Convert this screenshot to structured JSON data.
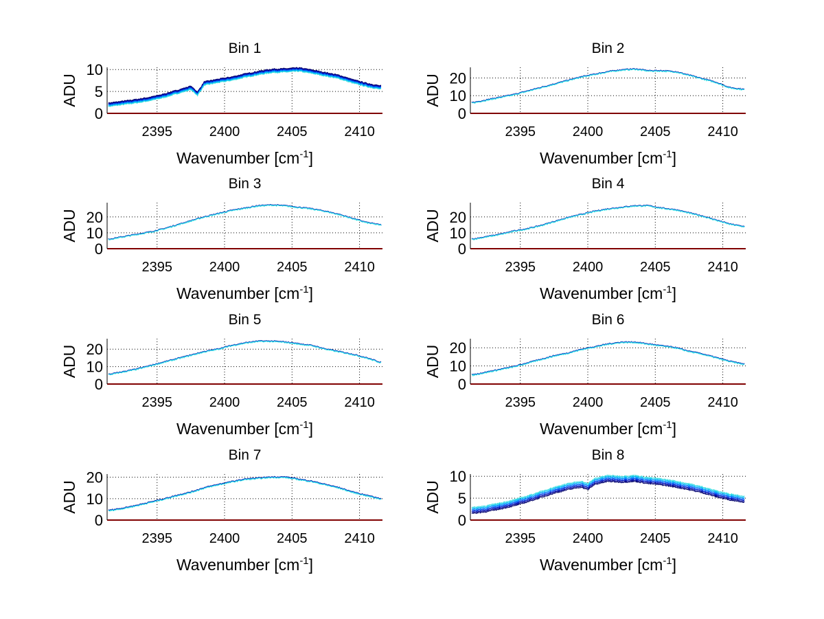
{
  "figure": {
    "background": "#ffffff",
    "grid_color": "#000000",
    "zero_line_color": "#800000",
    "series_colors": [
      "#000066",
      "#00008f",
      "#0018c8",
      "#0050f0",
      "#0090ff",
      "#00c0f0",
      "#40e0e0"
    ]
  },
  "chart_data": [
    {
      "type": "line",
      "title": "Bin 1",
      "xlabel": "Wavenumber [cm",
      "xlabel_sup": "-1",
      "xlabel_end": "]",
      "ylabel": "ADU",
      "xlim": [
        2391.3,
        2411.7
      ],
      "ylim": [
        0,
        10.5
      ],
      "xticks": [
        2395,
        2400,
        2405,
        2410
      ],
      "yticks": [
        0,
        5,
        10
      ],
      "xtick_labels": [
        "2395",
        "2400",
        "2405",
        "2410"
      ],
      "ytick_labels": [
        "0",
        "5",
        "10"
      ],
      "grid": true,
      "series_count": 7,
      "series_spread": 0.8,
      "x": [
        2391.5,
        2392.5,
        2393.5,
        2394.5,
        2395.5,
        2396.5,
        2397.5,
        2398,
        2398.5,
        2399.5,
        2400.5,
        2401.5,
        2402.5,
        2403.5,
        2404.5,
        2405.5,
        2406.5,
        2407.5,
        2408.5,
        2409.5,
        2410.5,
        2411.5
      ],
      "y": [
        2.0,
        2.4,
        2.8,
        3.3,
        4.0,
        4.9,
        5.8,
        4.5,
        6.8,
        7.4,
        7.9,
        8.6,
        9.2,
        9.7,
        9.8,
        10.0,
        9.5,
        8.9,
        8.3,
        7.3,
        6.5,
        5.9
      ]
    },
    {
      "type": "line",
      "title": "Bin 2",
      "xlabel": "Wavenumber [cm",
      "xlabel_sup": "-1",
      "xlabel_end": "]",
      "ylabel": "ADU",
      "xlim": [
        2391.3,
        2411.7
      ],
      "ylim": [
        0,
        26
      ],
      "xticks": [
        2395,
        2400,
        2405,
        2410
      ],
      "yticks": [
        0,
        10,
        20
      ],
      "xtick_labels": [
        "2395",
        "2400",
        "2405",
        "2410"
      ],
      "ytick_labels": [
        "0",
        "10",
        "20"
      ],
      "grid": true,
      "series_count": 7,
      "series_spread": 0.4,
      "x": [
        2391.5,
        2392.5,
        2393.5,
        2394.5,
        2395.5,
        2396.5,
        2397.5,
        2398.5,
        2399.5,
        2400.5,
        2401.5,
        2402.5,
        2403.5,
        2404.5,
        2405.5,
        2406.5,
        2407.5,
        2408.5,
        2409.5,
        2410.5,
        2411.5
      ],
      "y": [
        6.0,
        7.5,
        9.0,
        10.5,
        12.5,
        14.5,
        16.5,
        18.5,
        20.5,
        22.0,
        23.5,
        24.5,
        25.0,
        24.0,
        24.0,
        23.5,
        21.5,
        19.5,
        17.5,
        14.5,
        13.5
      ]
    },
    {
      "type": "line",
      "title": "Bin 3",
      "xlabel": "Wavenumber [cm",
      "xlabel_sup": "-1",
      "xlabel_end": "]",
      "ylabel": "ADU",
      "xlim": [
        2391.3,
        2411.7
      ],
      "ylim": [
        0,
        29
      ],
      "xticks": [
        2395,
        2400,
        2405,
        2410
      ],
      "yticks": [
        0,
        10,
        20
      ],
      "xtick_labels": [
        "2395",
        "2400",
        "2405",
        "2410"
      ],
      "ytick_labels": [
        "0",
        "10",
        "20"
      ],
      "grid": true,
      "series_count": 7,
      "series_spread": 0.4,
      "x": [
        2391.5,
        2392.5,
        2393.5,
        2394.5,
        2395.5,
        2396.5,
        2397.5,
        2398.5,
        2399.5,
        2400.5,
        2401.5,
        2402.5,
        2403.5,
        2404.5,
        2405.5,
        2406.5,
        2407.5,
        2408.5,
        2409.5,
        2410.5,
        2411.5
      ],
      "y": [
        6.0,
        7.5,
        9.0,
        10.5,
        12.5,
        15.0,
        17.5,
        20.0,
        22.0,
        24.0,
        25.5,
        27.0,
        27.5,
        27.0,
        26.0,
        25.0,
        23.5,
        21.5,
        19.0,
        16.5,
        15.0
      ]
    },
    {
      "type": "line",
      "title": "Bin 4",
      "xlabel": "Wavenumber [cm",
      "xlabel_sup": "-1",
      "xlabel_end": "]",
      "ylabel": "ADU",
      "xlim": [
        2391.3,
        2411.7
      ],
      "ylim": [
        0,
        29
      ],
      "xticks": [
        2395,
        2400,
        2405,
        2410
      ],
      "yticks": [
        0,
        10,
        20
      ],
      "xtick_labels": [
        "2395",
        "2400",
        "2405",
        "2410"
      ],
      "ytick_labels": [
        "0",
        "10",
        "20"
      ],
      "grid": true,
      "series_count": 7,
      "series_spread": 0.4,
      "x": [
        2391.5,
        2392.5,
        2393.5,
        2394.5,
        2395.5,
        2396.5,
        2397.5,
        2398.5,
        2399.5,
        2400.5,
        2401.5,
        2402.5,
        2403.5,
        2404.5,
        2405.5,
        2406.5,
        2407.5,
        2408.5,
        2409.5,
        2410.5,
        2411.5
      ],
      "y": [
        6.0,
        7.5,
        9.0,
        11.0,
        12.5,
        14.5,
        17.0,
        19.5,
        21.5,
        23.5,
        25.0,
        26.0,
        27.0,
        27.0,
        25.5,
        24.5,
        22.5,
        20.5,
        18.0,
        15.5,
        14.0
      ]
    },
    {
      "type": "line",
      "title": "Bin 5",
      "xlabel": "Wavenumber [cm",
      "xlabel_sup": "-1",
      "xlabel_end": "]",
      "ylabel": "ADU",
      "xlim": [
        2391.3,
        2411.7
      ],
      "ylim": [
        0,
        26
      ],
      "xticks": [
        2395,
        2400,
        2405,
        2410
      ],
      "yticks": [
        0,
        10,
        20
      ],
      "xtick_labels": [
        "2395",
        "2400",
        "2405",
        "2410"
      ],
      "ytick_labels": [
        "0",
        "10",
        "20"
      ],
      "grid": true,
      "series_count": 7,
      "series_spread": 0.4,
      "x": [
        2391.5,
        2392.5,
        2393.5,
        2394.5,
        2395.5,
        2396.5,
        2397.5,
        2398.5,
        2399.5,
        2400.5,
        2401.5,
        2402.5,
        2403.5,
        2404.5,
        2405.5,
        2406.5,
        2407.5,
        2408.5,
        2409.5,
        2410.5,
        2411.5
      ],
      "y": [
        5.5,
        7.0,
        8.5,
        10.5,
        12.5,
        14.5,
        16.5,
        18.5,
        20.0,
        22.0,
        23.5,
        24.5,
        24.5,
        24.0,
        23.0,
        22.0,
        20.0,
        18.5,
        17.0,
        15.0,
        12.5
      ]
    },
    {
      "type": "line",
      "title": "Bin 6",
      "xlabel": "Wavenumber [cm",
      "xlabel_sup": "-1",
      "xlabel_end": "]",
      "ylabel": "ADU",
      "xlim": [
        2391.3,
        2411.7
      ],
      "ylim": [
        0,
        25
      ],
      "xticks": [
        2395,
        2400,
        2405,
        2410
      ],
      "yticks": [
        0,
        10,
        20
      ],
      "xtick_labels": [
        "2395",
        "2400",
        "2405",
        "2410"
      ],
      "ytick_labels": [
        "0",
        "10",
        "20"
      ],
      "grid": true,
      "series_count": 7,
      "series_spread": 0.4,
      "x": [
        2391.5,
        2392.5,
        2393.5,
        2394.5,
        2395.5,
        2396.5,
        2397.5,
        2398.5,
        2399.5,
        2400.5,
        2401.5,
        2402.5,
        2403.5,
        2404.5,
        2405.5,
        2406.5,
        2407.5,
        2408.5,
        2409.5,
        2410.5,
        2411.5
      ],
      "y": [
        5.0,
        6.5,
        8.0,
        9.5,
        11.5,
        13.5,
        15.5,
        17.0,
        19.0,
        20.5,
        22.0,
        23.0,
        23.0,
        22.0,
        21.0,
        20.0,
        18.0,
        16.5,
        14.5,
        12.5,
        11.0
      ]
    },
    {
      "type": "line",
      "title": "Bin 7",
      "xlabel": "Wavenumber [cm",
      "xlabel_sup": "-1",
      "xlabel_end": "]",
      "ylabel": "ADU",
      "xlim": [
        2391.3,
        2411.7
      ],
      "ylim": [
        0,
        21.5
      ],
      "xticks": [
        2395,
        2400,
        2405,
        2410
      ],
      "yticks": [
        0,
        10,
        20
      ],
      "xtick_labels": [
        "2395",
        "2400",
        "2405",
        "2410"
      ],
      "ytick_labels": [
        "0",
        "10",
        "20"
      ],
      "grid": true,
      "series_count": 7,
      "series_spread": 0.4,
      "x": [
        2391.5,
        2392.5,
        2393.5,
        2394.5,
        2395.5,
        2396.5,
        2397.5,
        2398.5,
        2399.5,
        2400.5,
        2401.5,
        2402.5,
        2403.5,
        2404.5,
        2405.5,
        2406.5,
        2407.5,
        2408.5,
        2409.5,
        2410.5,
        2411.5
      ],
      "y": [
        4.5,
        5.5,
        6.8,
        8.3,
        9.8,
        11.5,
        13.0,
        15.0,
        16.5,
        17.8,
        19.0,
        19.5,
        20.0,
        20.0,
        19.0,
        18.0,
        16.5,
        15.0,
        13.0,
        11.5,
        10.0
      ]
    },
    {
      "type": "line",
      "title": "Bin 8",
      "xlabel": "Wavenumber [cm",
      "xlabel_sup": "-1",
      "xlabel_end": "]",
      "ylabel": "ADU",
      "xlim": [
        2391.3,
        2411.7
      ],
      "ylim": [
        0,
        10.5
      ],
      "xticks": [
        2395,
        2400,
        2405,
        2410
      ],
      "yticks": [
        0,
        5,
        10
      ],
      "xtick_labels": [
        "2395",
        "2400",
        "2405",
        "2410"
      ],
      "ytick_labels": [
        "0",
        "5",
        "10"
      ],
      "grid": true,
      "series_count": 7,
      "series_spread": 1.4,
      "x": [
        2391.5,
        2392.5,
        2393.5,
        2394.5,
        2395.5,
        2396.5,
        2397.5,
        2398.5,
        2399.5,
        2400,
        2400.5,
        2401.5,
        2402.5,
        2403.5,
        2404.5,
        2405.5,
        2406.5,
        2407.5,
        2408.5,
        2409.5,
        2410.5,
        2411.5
      ],
      "y": [
        2.2,
        2.6,
        3.2,
        3.9,
        4.8,
        5.8,
        6.8,
        7.6,
        8.2,
        7.6,
        8.8,
        9.5,
        9.3,
        9.5,
        9.0,
        8.7,
        8.2,
        7.6,
        6.9,
        6.0,
        5.3,
        4.8
      ]
    }
  ]
}
